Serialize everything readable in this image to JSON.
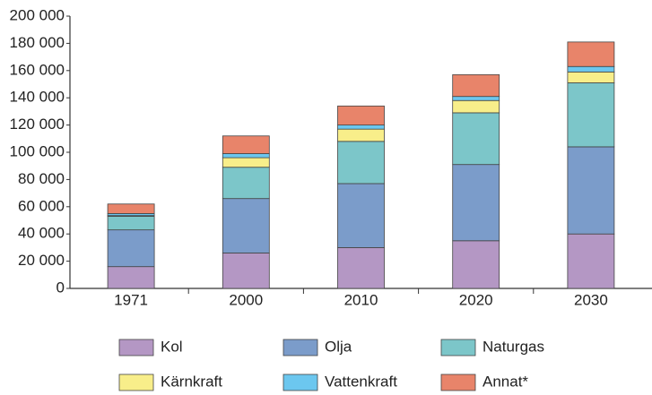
{
  "chart_data": {
    "type": "bar",
    "stacked": true,
    "categories": [
      "1971",
      "2000",
      "2010",
      "2020",
      "2030"
    ],
    "series": [
      {
        "name": "Kol",
        "color": "#b497c4",
        "values": [
          16000,
          26000,
          30000,
          35000,
          40000
        ]
      },
      {
        "name": "Olja",
        "color": "#7b9cca",
        "values": [
          27000,
          40000,
          47000,
          56000,
          64000
        ]
      },
      {
        "name": "Naturgas",
        "color": "#7cc6c9",
        "values": [
          10000,
          23000,
          31000,
          38000,
          47000
        ]
      },
      {
        "name": "Kärnkraft",
        "color": "#f8ee8a",
        "values": [
          500,
          7000,
          9000,
          9000,
          8000
        ]
      },
      {
        "name": "Vattenkraft",
        "color": "#6cc7ef",
        "values": [
          1500,
          3000,
          3000,
          3000,
          4000
        ]
      },
      {
        "name": "Annat*",
        "color": "#e8846a",
        "values": [
          7000,
          13000,
          14000,
          16000,
          18000
        ]
      }
    ],
    "ylim": [
      0,
      200000
    ],
    "yticks": [
      0,
      {
        "value": 20000,
        "label": "20 000"
      },
      {
        "value": 40000,
        "label": "40 000"
      },
      {
        "value": 60000,
        "label": "60 000"
      },
      {
        "value": 80000,
        "label": "80 000"
      },
      {
        "value": 100000,
        "label": "100 000"
      },
      {
        "value": 120000,
        "label": "120 000"
      },
      {
        "value": 140000,
        "label": "140 000"
      },
      {
        "value": 160000,
        "label": "160 000"
      },
      {
        "value": 180000,
        "label": "180 000"
      },
      {
        "value": 200000,
        "label": "200 000"
      }
    ],
    "grid": false
  }
}
